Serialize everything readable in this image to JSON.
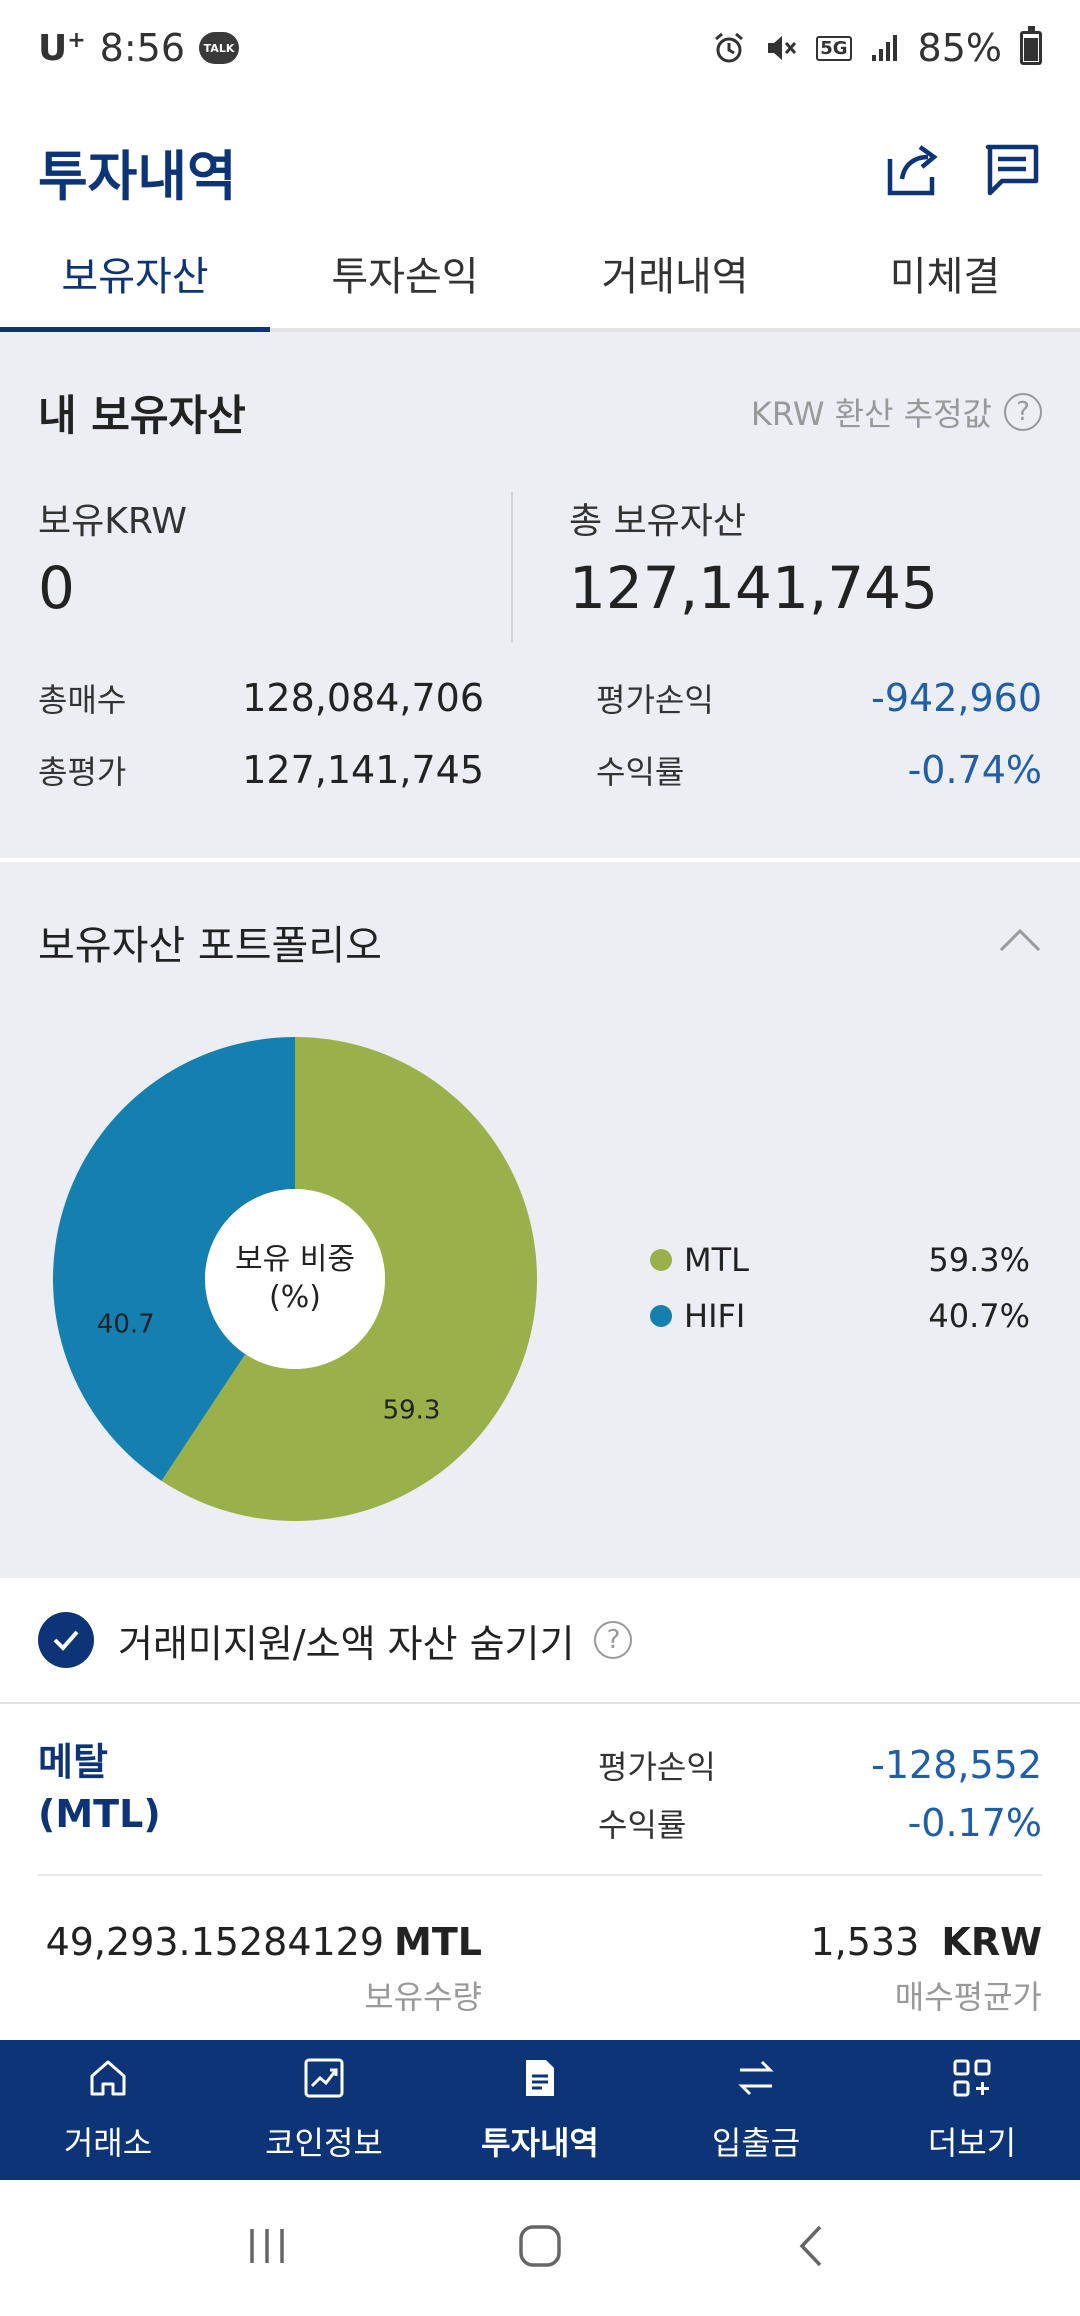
{
  "status_bar": {
    "carrier": "U",
    "carrier_sup": "+",
    "time": "8:56",
    "talk": "TALK",
    "network": "5G",
    "battery": "85%"
  },
  "header": {
    "title": "투자내역"
  },
  "tabs": [
    {
      "label": "보유자산",
      "active": true
    },
    {
      "label": "투자손익",
      "active": false
    },
    {
      "label": "거래내역",
      "active": false
    },
    {
      "label": "미체결",
      "active": false
    }
  ],
  "summary": {
    "title": "내 보유자산",
    "note": "KRW 환산 추정값",
    "krw_label": "보유KRW",
    "krw_value": "0",
    "total_label": "총 보유자산",
    "total_value": "127,141,745",
    "total_buy_label": "총매수",
    "total_buy_value": "128,084,706",
    "total_eval_label": "총평가",
    "total_eval_value": "127,141,745",
    "pnl_label": "평가손익",
    "pnl_value": "-942,960",
    "return_label": "수익률",
    "return_value": "-0.74%"
  },
  "portfolio": {
    "title": "보유자산 포트폴리오",
    "center_line1": "보유 비중",
    "center_line2": "(%)",
    "legend": [
      {
        "name": "MTL",
        "pct": "59.3%"
      },
      {
        "name": "HIFI",
        "pct": "40.7%"
      }
    ]
  },
  "chart_data": {
    "type": "pie",
    "categories": [
      "MTL",
      "HIFI"
    ],
    "values": [
      59.3,
      40.7
    ],
    "data_labels": [
      "59.3",
      "40.7"
    ],
    "colors": [
      "#9ab14b",
      "#1580b0"
    ],
    "title": ""
  },
  "hide_toggle": {
    "label": "거래미지원/소액 자산 숨기기",
    "checked": true
  },
  "asset": {
    "name_line1": "메탈",
    "name_line2": "(MTL)",
    "pnl_label": "평가손익",
    "pnl_value": "-128,552",
    "return_label": "수익률",
    "return_value": "-0.17%",
    "quantity_value": "49,293.15284129",
    "quantity_unit": "MTL",
    "quantity_caption": "보유수량",
    "avg_price_value": "1,533",
    "avg_price_unit": "KRW",
    "avg_price_caption": "매수평균가"
  },
  "bottom_nav": [
    {
      "label": "거래소",
      "icon": "home-icon",
      "active": false
    },
    {
      "label": "코인정보",
      "icon": "chart-icon",
      "active": false
    },
    {
      "label": "투자내역",
      "icon": "document-icon",
      "active": true
    },
    {
      "label": "입출금",
      "icon": "transfer-icon",
      "active": false
    },
    {
      "label": "더보기",
      "icon": "more-grid-icon",
      "active": false
    }
  ],
  "colors": {
    "primary": "#0d3477",
    "negative": "#1f5fa8",
    "background": "#eceef3"
  }
}
